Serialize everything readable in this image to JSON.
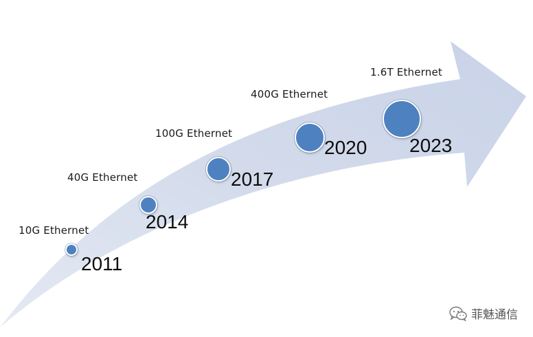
{
  "milestones": [
    {
      "speed": "10G Ethernet",
      "year": "2011"
    },
    {
      "speed": "40G Ethernet",
      "year": "2014"
    },
    {
      "speed": "100G Ethernet",
      "year": "2017"
    },
    {
      "speed": "400G Ethernet",
      "year": "2020"
    },
    {
      "speed": "1.6T Ethernet",
      "year": "2023"
    }
  ],
  "colors": {
    "arrow_fill": "#cfd8ea",
    "dot_fill": "#4e81c0"
  },
  "watermark": {
    "text": "菲魅通信",
    "icon": "wechat-icon"
  }
}
